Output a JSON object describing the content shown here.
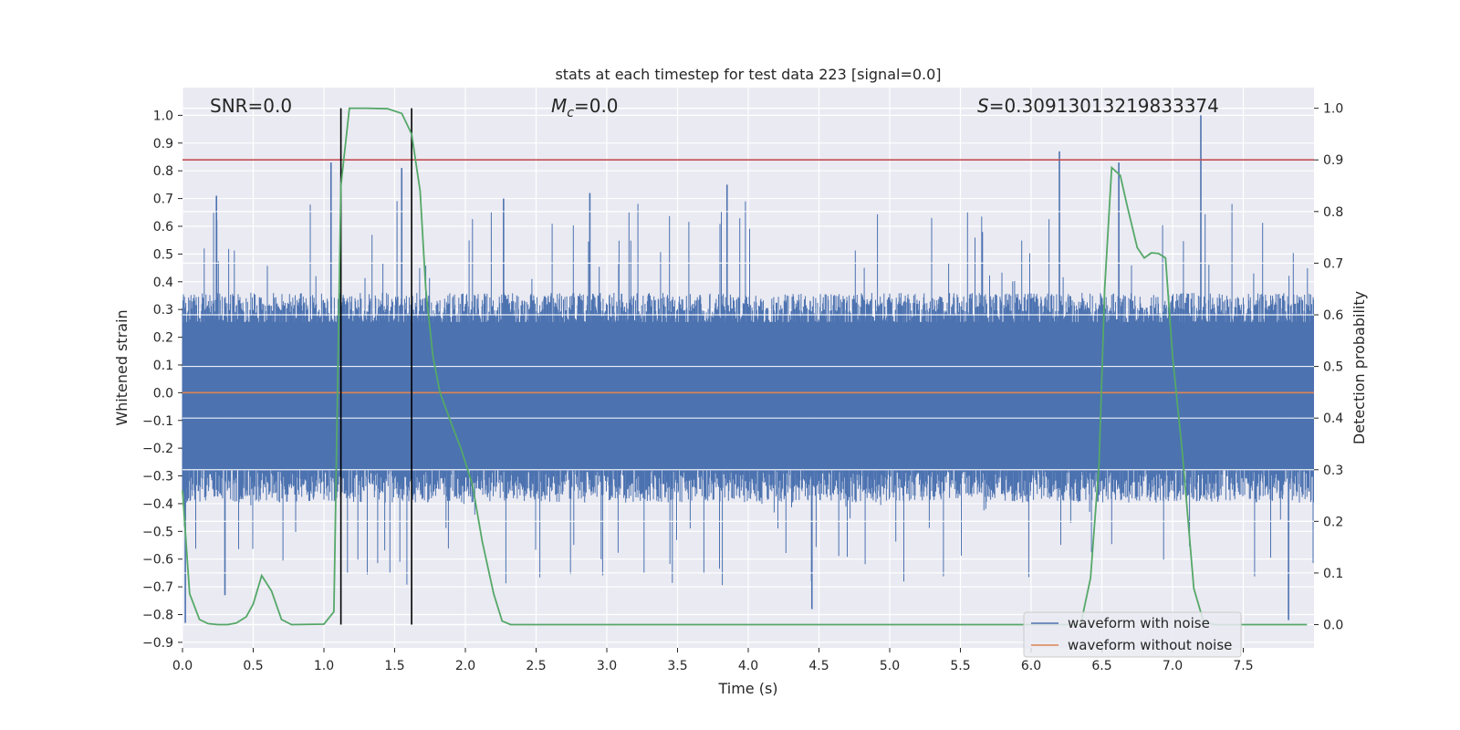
{
  "chart_data": {
    "type": "line",
    "title": "stats at each timestep for test data 223 [signal=0.0]",
    "xlabel": "Time (s)",
    "ylabel_left": "Whitened strain",
    "ylabel_right": "Detection probability",
    "xlim": [
      0.0,
      8.0
    ],
    "ylim_left": [
      -0.92,
      1.1
    ],
    "ylim_right": [
      -0.045,
      1.04
    ],
    "x_ticks": [
      "0.0",
      "0.5",
      "1.0",
      "1.5",
      "2.0",
      "2.5",
      "3.0",
      "3.5",
      "4.0",
      "4.5",
      "5.0",
      "5.5",
      "6.0",
      "6.5",
      "7.0",
      "7.5"
    ],
    "y_ticks_left": [
      "-0.9",
      "-0.8",
      "-0.7",
      "-0.6",
      "-0.5",
      "-0.4",
      "-0.3",
      "-0.2",
      "-0.1",
      "0.0",
      "0.1",
      "0.2",
      "0.3",
      "0.4",
      "0.5",
      "0.6",
      "0.7",
      "0.8",
      "0.9",
      "1.0"
    ],
    "y_ticks_right": [
      "0.0",
      "0.1",
      "0.2",
      "0.3",
      "0.4",
      "0.5",
      "0.6",
      "0.7",
      "0.8",
      "0.9",
      "1.0"
    ],
    "grid": true,
    "legend_position": "bottom-right",
    "annotations": {
      "snr": "SNR=0.0",
      "mc_symbol": "M",
      "mc_sub": "c",
      "mc_value": "=0.0",
      "s_symbol": "S",
      "s_value": "=0.30913013219833374"
    },
    "threshold": {
      "value": 0.9,
      "axis": "right",
      "color": "#c44e52"
    },
    "vertical_markers": {
      "x": [
        1.12,
        1.62
      ],
      "color": "#000000"
    },
    "series": [
      {
        "name": "waveform with noise",
        "axis": "left",
        "color": "#4c72b0",
        "envelope": {
          "typical_upper": 0.3,
          "typical_lower": -0.33,
          "spike_max": 1.0,
          "spike_min": -0.83
        },
        "spikes": [
          {
            "x": 0.02,
            "y": -0.83
          },
          {
            "x": 0.24,
            "y": 0.71
          },
          {
            "x": 0.3,
            "y": -0.73
          },
          {
            "x": 1.05,
            "y": 0.83
          },
          {
            "x": 1.55,
            "y": 0.81
          },
          {
            "x": 2.27,
            "y": 0.7
          },
          {
            "x": 2.88,
            "y": 0.72
          },
          {
            "x": 3.85,
            "y": 0.75
          },
          {
            "x": 4.45,
            "y": -0.78
          },
          {
            "x": 6.2,
            "y": 0.87
          },
          {
            "x": 6.62,
            "y": 0.83
          },
          {
            "x": 7.2,
            "y": 1.0
          },
          {
            "x": 7.82,
            "y": -0.82
          }
        ]
      },
      {
        "name": "waveform without noise",
        "axis": "left",
        "color": "#dd8452",
        "values": [
          [
            0.0,
            0.0
          ],
          [
            8.0,
            0.0
          ]
        ]
      },
      {
        "name": "detection probability",
        "axis": "right",
        "color": "#55a868",
        "values": [
          [
            0.0,
            0.26
          ],
          [
            0.05,
            0.06
          ],
          [
            0.12,
            0.01
          ],
          [
            0.18,
            0.002
          ],
          [
            0.25,
            0.0
          ],
          [
            0.32,
            0.0
          ],
          [
            0.38,
            0.003
          ],
          [
            0.45,
            0.015
          ],
          [
            0.5,
            0.04
          ],
          [
            0.56,
            0.095
          ],
          [
            0.63,
            0.065
          ],
          [
            0.7,
            0.01
          ],
          [
            0.77,
            0.0
          ],
          [
            1.0,
            0.001
          ],
          [
            1.07,
            0.025
          ],
          [
            1.12,
            0.85
          ],
          [
            1.18,
            1.0
          ],
          [
            1.3,
            1.0
          ],
          [
            1.45,
            0.999
          ],
          [
            1.55,
            0.99
          ],
          [
            1.62,
            0.95
          ],
          [
            1.68,
            0.84
          ],
          [
            1.72,
            0.65
          ],
          [
            1.77,
            0.52
          ],
          [
            1.82,
            0.45
          ],
          [
            1.9,
            0.39
          ],
          [
            1.97,
            0.34
          ],
          [
            2.05,
            0.27
          ],
          [
            2.12,
            0.16
          ],
          [
            2.2,
            0.06
          ],
          [
            2.26,
            0.007
          ],
          [
            2.32,
            0.0
          ],
          [
            6.35,
            0.0
          ],
          [
            6.42,
            0.09
          ],
          [
            6.48,
            0.31
          ],
          [
            6.52,
            0.65
          ],
          [
            6.57,
            0.885
          ],
          [
            6.63,
            0.87
          ],
          [
            6.68,
            0.81
          ],
          [
            6.75,
            0.73
          ],
          [
            6.8,
            0.71
          ],
          [
            6.85,
            0.72
          ],
          [
            6.9,
            0.719
          ],
          [
            6.95,
            0.71
          ],
          [
            7.0,
            0.52
          ],
          [
            7.07,
            0.33
          ],
          [
            7.15,
            0.07
          ],
          [
            7.22,
            0.005
          ],
          [
            7.3,
            0.0
          ],
          [
            7.95,
            0.0
          ]
        ]
      }
    ]
  }
}
